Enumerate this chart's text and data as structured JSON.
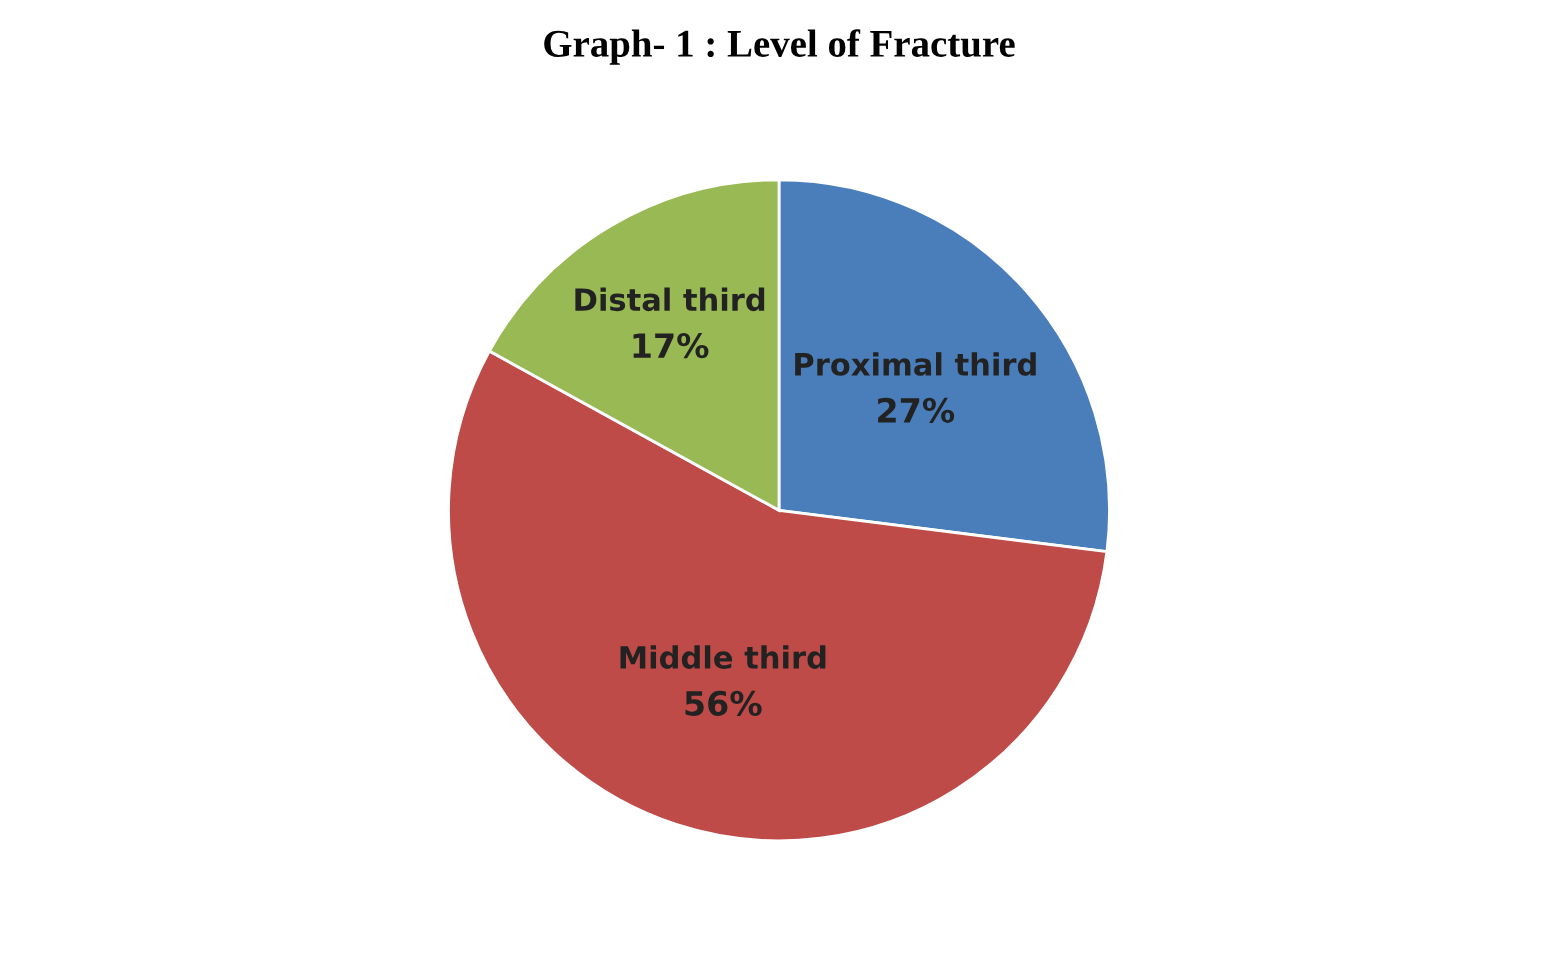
{
  "chart_data": {
    "type": "pie",
    "title": "Graph- 1 : Level of Fracture",
    "categories": [
      "Proximal third",
      "Middle third",
      "Distal third"
    ],
    "values": [
      27,
      56,
      17
    ],
    "value_labels": [
      "27%",
      "56%",
      "17%"
    ],
    "colors": [
      "#4a7ebb",
      "#be4b48",
      "#98b954"
    ]
  }
}
